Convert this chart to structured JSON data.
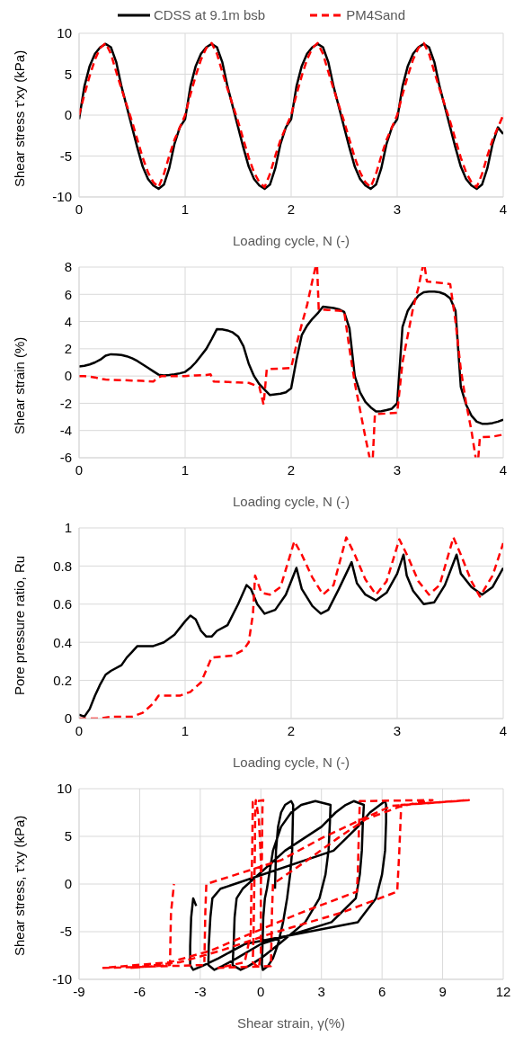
{
  "chart_data": [
    {
      "type": "line",
      "ylabel": "Shear stress τ'xy (kPa)",
      "xlabel": "Loading cycle, N (-)",
      "legend": "top",
      "grid": true,
      "xlim": [
        0,
        4
      ],
      "xticks": [
        0,
        1,
        2,
        3,
        4
      ],
      "ylim": [
        -10,
        10
      ],
      "yticks": [
        -10,
        -5,
        0,
        5,
        10
      ],
      "x": [
        0,
        0.05,
        0.1,
        0.15,
        0.2,
        0.25,
        0.3,
        0.35,
        0.4,
        0.45,
        0.5,
        0.55,
        0.6,
        0.65,
        0.7,
        0.75,
        0.8,
        0.85,
        0.9,
        0.95,
        1,
        1.05,
        1.1,
        1.15,
        1.2,
        1.25,
        1.3,
        1.35,
        1.4,
        1.45,
        1.5,
        1.55,
        1.6,
        1.65,
        1.7,
        1.75,
        1.8,
        1.85,
        1.9,
        1.95,
        2,
        2.05,
        2.1,
        2.15,
        2.2,
        2.25,
        2.3,
        2.35,
        2.4,
        2.45,
        2.5,
        2.55,
        2.6,
        2.65,
        2.7,
        2.75,
        2.8,
        2.85,
        2.9,
        2.95,
        3,
        3.05,
        3.1,
        3.15,
        3.2,
        3.25,
        3.3,
        3.35,
        3.4,
        3.45,
        3.5,
        3.55,
        3.6,
        3.65,
        3.7,
        3.75,
        3.8,
        3.85,
        3.9,
        3.95,
        4
      ],
      "series": [
        {
          "name": "CDSS at 9.1m bsb",
          "color": "#000000",
          "line_style": "solid",
          "values": [
            -0.5,
            3.5,
            6,
            7.5,
            8.3,
            8.7,
            8.3,
            6.5,
            3.5,
            1,
            -1.5,
            -4,
            -6.3,
            -7.8,
            -8.6,
            -9,
            -8.5,
            -6.5,
            -3.5,
            -1.5,
            -0.5,
            3.5,
            6,
            7.5,
            8.3,
            8.7,
            8.3,
            6.5,
            3.5,
            1,
            -1.5,
            -4,
            -6.3,
            -7.8,
            -8.6,
            -9,
            -8.5,
            -6.5,
            -3.5,
            -1.5,
            -0.5,
            3.5,
            6,
            7.5,
            8.3,
            8.7,
            8.3,
            6.5,
            3.5,
            1,
            -1.5,
            -4,
            -6.3,
            -7.8,
            -8.6,
            -9,
            -8.5,
            -6.5,
            -3.5,
            -1.5,
            -0.5,
            3.5,
            6,
            7.5,
            8.3,
            8.7,
            8.3,
            6.5,
            3.5,
            1,
            -1.5,
            -4,
            -6.3,
            -7.8,
            -8.6,
            -9,
            -8.5,
            -6.5,
            -3.5,
            -1.5,
            -2.3
          ]
        },
        {
          "name": "PM4Sand",
          "color": "#ff0000",
          "line_style": "dashed",
          "values": [
            0,
            2.5,
            4.8,
            6.8,
            8.2,
            8.8,
            7.5,
            5.3,
            3.2,
            1.2,
            -0.8,
            -3,
            -5.2,
            -7,
            -8.2,
            -8.8,
            -7.2,
            -5,
            -3,
            -1.5,
            0,
            2.5,
            4.8,
            6.8,
            8.2,
            8.8,
            7.5,
            5.3,
            3.2,
            1.2,
            -0.8,
            -3,
            -5.2,
            -7,
            -8.2,
            -8.8,
            -7.2,
            -5,
            -3,
            -1.5,
            0,
            2.5,
            4.8,
            6.8,
            8.2,
            8.8,
            7.5,
            5.3,
            3.2,
            1.2,
            -0.8,
            -3,
            -5.2,
            -7,
            -8.2,
            -8.8,
            -7.2,
            -5,
            -3,
            -1.5,
            0,
            2.5,
            4.8,
            6.8,
            8.2,
            8.8,
            7.5,
            5.3,
            3.2,
            1.2,
            -0.8,
            -3,
            -5.2,
            -7,
            -8.2,
            -8.8,
            -7.2,
            -5,
            -3,
            -1.5,
            0
          ]
        }
      ]
    },
    {
      "type": "line",
      "ylabel": "Shear strain (%)",
      "xlabel": "Loading cycle, N (-)",
      "grid": true,
      "xlim": [
        0,
        4
      ],
      "xticks": [
        0,
        1,
        2,
        3,
        4
      ],
      "ylim": [
        -6,
        8
      ],
      "yticks": [
        -6,
        -4,
        -2,
        0,
        2,
        4,
        6,
        8
      ],
      "series": [
        {
          "color": "#000000",
          "line_style": "solid",
          "x": [
            0,
            0.05,
            0.1,
            0.15,
            0.2,
            0.25,
            0.3,
            0.35,
            0.4,
            0.45,
            0.5,
            0.55,
            0.6,
            0.65,
            0.7,
            0.75,
            0.8,
            0.85,
            0.9,
            0.95,
            1,
            1.05,
            1.1,
            1.15,
            1.2,
            1.25,
            1.3,
            1.35,
            1.4,
            1.45,
            1.5,
            1.55,
            1.6,
            1.65,
            1.7,
            1.75,
            1.8,
            1.85,
            1.9,
            1.95,
            2,
            2.05,
            2.1,
            2.15,
            2.2,
            2.25,
            2.3,
            2.35,
            2.4,
            2.45,
            2.5,
            2.55,
            2.6,
            2.65,
            2.7,
            2.75,
            2.8,
            2.85,
            2.9,
            2.95,
            3,
            3.05,
            3.1,
            3.15,
            3.2,
            3.25,
            3.3,
            3.35,
            3.4,
            3.45,
            3.5,
            3.55,
            3.6,
            3.65,
            3.7,
            3.75,
            3.8,
            3.85,
            3.9,
            3.95,
            4
          ],
          "values": [
            0.7,
            0.75,
            0.85,
            1,
            1.2,
            1.5,
            1.6,
            1.58,
            1.55,
            1.45,
            1.3,
            1.1,
            0.85,
            0.6,
            0.35,
            0.1,
            0.05,
            0.08,
            0.12,
            0.2,
            0.3,
            0.6,
            1,
            1.5,
            2,
            2.7,
            3.45,
            3.42,
            3.35,
            3.2,
            2.9,
            2.2,
            0.9,
            0,
            -0.6,
            -1,
            -1.4,
            -1.35,
            -1.3,
            -1.2,
            -0.9,
            1.2,
            3,
            3.7,
            4.2,
            4.6,
            5.1,
            5.05,
            5,
            4.9,
            4.7,
            3.5,
            0,
            -1.2,
            -1.9,
            -2.3,
            -2.6,
            -2.58,
            -2.5,
            -2.4,
            -2,
            3.6,
            4.8,
            5.4,
            5.9,
            6.15,
            6.2,
            6.2,
            6.15,
            6,
            5.7,
            4.8,
            -0.8,
            -2.1,
            -2.9,
            -3.35,
            -3.5,
            -3.5,
            -3.45,
            -3.35,
            -3.2
          ]
        },
        {
          "color": "#ff0000",
          "line_style": "dashed",
          "x": [
            0,
            0.05,
            0.1,
            0.15,
            0.2,
            0.25,
            0.3,
            0.4,
            0.5,
            0.6,
            0.7,
            0.75,
            0.78,
            0.9,
            1,
            1.1,
            1.2,
            1.24,
            1.27,
            1.4,
            1.5,
            1.6,
            1.7,
            1.74,
            1.77,
            1.9,
            2,
            2.05,
            2.1,
            2.15,
            2.2,
            2.23,
            2.235,
            2.245,
            2.26,
            2.35,
            2.45,
            2.5,
            2.55,
            2.6,
            2.65,
            2.7,
            2.74,
            2.745,
            2.77,
            2.79,
            2.9,
            3,
            3.05,
            3.1,
            3.15,
            3.2,
            3.24,
            3.245,
            3.26,
            3.28,
            3.4,
            3.5,
            3.55,
            3.6,
            3.65,
            3.7,
            3.74,
            3.745,
            3.765,
            3.78,
            3.9,
            4
          ],
          "values": [
            0,
            0,
            -0.05,
            -0.1,
            -0.2,
            -0.25,
            -0.28,
            -0.3,
            -0.33,
            -0.36,
            -0.4,
            -0.1,
            0,
            0,
            0,
            0.05,
            0.08,
            0.12,
            -0.4,
            -0.43,
            -0.47,
            -0.5,
            -0.8,
            -2.1,
            0.5,
            0.55,
            0.6,
            2.3,
            3.8,
            5.2,
            7,
            8,
            null,
            8,
            4.9,
            4.85,
            4.8,
            4.75,
            2,
            -0.5,
            -2.5,
            -4.5,
            -6,
            null,
            -6,
            -2.8,
            -2.75,
            -2.7,
            1,
            3,
            5,
            6.5,
            8,
            null,
            8,
            6.95,
            6.85,
            6.75,
            4,
            0.5,
            -2,
            -4,
            -6,
            null,
            -6,
            -4.5,
            -4.45,
            -4.3
          ]
        }
      ]
    },
    {
      "type": "line",
      "ylabel": "Pore pressure ratio, Ru",
      "xlabel": "Loading cycle, N (-)",
      "grid": true,
      "xlim": [
        0,
        4
      ],
      "xticks": [
        0,
        1,
        2,
        3,
        4
      ],
      "ylim": [
        0,
        1
      ],
      "yticks": [
        0,
        0.2,
        0.4,
        0.6,
        0.8,
        1
      ],
      "series": [
        {
          "color": "#000000",
          "line_style": "solid",
          "x": [
            0,
            0.05,
            0.1,
            0.15,
            0.2,
            0.25,
            0.3,
            0.4,
            0.45,
            0.5,
            0.55,
            0.6,
            0.7,
            0.8,
            0.9,
            1,
            1.05,
            1.1,
            1.15,
            1.2,
            1.25,
            1.3,
            1.4,
            1.5,
            1.58,
            1.62,
            1.68,
            1.75,
            1.85,
            1.95,
            2.05,
            2.1,
            2.2,
            2.28,
            2.35,
            2.45,
            2.57,
            2.62,
            2.7,
            2.8,
            2.9,
            3,
            3.06,
            3.09,
            3.15,
            3.25,
            3.35,
            3.45,
            3.56,
            3.6,
            3.7,
            3.8,
            3.9,
            4
          ],
          "values": [
            0.02,
            0.01,
            0.05,
            0.12,
            0.18,
            0.23,
            0.25,
            0.28,
            0.32,
            0.35,
            0.38,
            0.38,
            0.38,
            0.4,
            0.44,
            0.51,
            0.54,
            0.52,
            0.46,
            0.43,
            0.43,
            0.46,
            0.49,
            0.6,
            0.7,
            0.68,
            0.6,
            0.55,
            0.57,
            0.65,
            0.79,
            0.68,
            0.59,
            0.55,
            0.57,
            0.68,
            0.82,
            0.71,
            0.65,
            0.62,
            0.66,
            0.76,
            0.86,
            0.75,
            0.67,
            0.6,
            0.61,
            0.7,
            0.86,
            0.76,
            0.69,
            0.65,
            0.69,
            0.79
          ]
        },
        {
          "color": "#ff0000",
          "line_style": "dashed",
          "x": [
            0,
            0.2,
            0.3,
            0.5,
            0.6,
            0.7,
            0.75,
            0.95,
            1.05,
            1.15,
            1.25,
            1.45,
            1.55,
            1.6,
            1.64,
            1.66,
            1.72,
            1.8,
            1.9,
            2.03,
            2.1,
            2.2,
            2.3,
            2.4,
            2.52,
            2.6,
            2.7,
            2.8,
            2.9,
            3.02,
            3.1,
            3.2,
            3.3,
            3.4,
            3.53,
            3.6,
            3.7,
            3.78,
            3.9,
            4
          ],
          "values": [
            0,
            0,
            0.01,
            0.01,
            0.03,
            0.08,
            0.12,
            0.12,
            0.14,
            0.19,
            0.32,
            0.33,
            0.36,
            0.4,
            0.55,
            0.75,
            0.66,
            0.65,
            0.69,
            0.93,
            0.86,
            0.74,
            0.65,
            0.7,
            0.95,
            0.86,
            0.73,
            0.65,
            0.72,
            0.94,
            0.85,
            0.72,
            0.65,
            0.7,
            0.95,
            0.86,
            0.72,
            0.64,
            0.75,
            0.92
          ]
        }
      ]
    },
    {
      "type": "line",
      "ylabel": "Shear stress, τ'xy (kPa)",
      "xlabel": "Shear strain, γ(%)",
      "grid": true,
      "xlim": [
        -9,
        12
      ],
      "xticks": [
        -9,
        -6,
        -3,
        0,
        3,
        6,
        9,
        12
      ],
      "ylim": [
        -10,
        10
      ],
      "yticks": [
        -10,
        -5,
        0,
        5,
        10
      ],
      "series": [
        {
          "color": "#000000",
          "line_style": "solid",
          "x": [
            0.7,
            0.75,
            0.85,
            1,
            1.2,
            1.5,
            1.6,
            1.58,
            1.55,
            1.45,
            1.3,
            1.1,
            0.85,
            0.6,
            0.35,
            0.1,
            0.05,
            0.08,
            0.12,
            0.2,
            0.3,
            0.6,
            1,
            1.5,
            2,
            2.7,
            3.45,
            3.42,
            3.35,
            3.2,
            2.9,
            2.2,
            0.9,
            0,
            -0.6,
            -1,
            -1.4,
            -1.35,
            -1.3,
            -1.2,
            -0.9,
            1.2,
            3,
            3.7,
            4.2,
            4.6,
            5.1,
            5.05,
            5,
            4.9,
            4.7,
            3.5,
            0,
            -1.2,
            -1.9,
            -2.3,
            -2.6,
            -2.58,
            -2.5,
            -2.4,
            -2,
            3.6,
            4.8,
            5.4,
            5.9,
            6.15,
            6.2,
            6.2,
            6.15,
            6,
            5.7,
            4.8,
            -0.8,
            -2.1,
            -2.9,
            -3.35,
            -3.5,
            -3.5,
            -3.45,
            -3.35,
            -3.2
          ],
          "values": [
            -0.5,
            3.5,
            6,
            7.5,
            8.3,
            8.7,
            8.3,
            6.5,
            3.5,
            1,
            -1.5,
            -4,
            -6.3,
            -7.8,
            -8.6,
            -9,
            -8.5,
            -6.5,
            -3.5,
            -1.5,
            -0.5,
            3.5,
            6,
            7.5,
            8.3,
            8.7,
            8.3,
            6.5,
            3.5,
            1,
            -1.5,
            -4,
            -6.3,
            -7.8,
            -8.6,
            -9,
            -8.5,
            -6.5,
            -3.5,
            -1.5,
            -0.5,
            3.5,
            6,
            7.5,
            8.3,
            8.7,
            8.3,
            6.5,
            3.5,
            1,
            -1.5,
            -4,
            -6.3,
            -7.8,
            -8.6,
            -9,
            -8.5,
            -6.5,
            -3.5,
            -1.5,
            -0.5,
            3.5,
            6,
            7.5,
            8.3,
            8.7,
            8.3,
            6.5,
            3.5,
            1,
            -1.5,
            -4,
            -6.3,
            -7.8,
            -8.6,
            -9,
            -8.5,
            -6.5,
            -3.5,
            -1.5,
            -2.3
          ]
        },
        {
          "color": "#ff0000",
          "line_style": "dashed",
          "x": [
            0,
            0,
            -0.05,
            -0.1,
            -0.2,
            -0.25,
            -0.28,
            -0.3,
            -0.33,
            -0.36,
            -0.4,
            -0.1,
            0,
            0,
            0,
            0.05,
            0.08,
            0.12,
            -0.4,
            -0.43,
            -0.47,
            -0.5,
            -0.8,
            -2.1,
            0.5,
            0.55,
            0.6,
            2.3,
            3.8,
            5.2,
            7,
            8.5,
            4.9,
            4.85,
            4.8,
            4.75,
            2,
            -0.5,
            -2.5,
            -4.5,
            -7.8,
            -2.8,
            -2.75,
            -2.7,
            1,
            3,
            5,
            6.5,
            10.3,
            6.95,
            6.85,
            6.75,
            4,
            0.5,
            -2,
            -4,
            -6.5,
            -4.5,
            -4.45,
            -4.3
          ],
          "values": [
            0,
            2.5,
            4.8,
            6.8,
            8.2,
            8.8,
            7.5,
            3,
            -0.8,
            -5.2,
            -8.2,
            -8.8,
            -7.2,
            -3,
            0,
            2.5,
            8.2,
            8.8,
            8.6,
            3.2,
            -0.8,
            -5.2,
            -8.2,
            -8.8,
            -8.6,
            -3,
            0,
            2.5,
            4.8,
            6.8,
            8.2,
            8.8,
            8.7,
            5.3,
            1,
            -0.8,
            -3,
            -5.2,
            -7,
            -8.2,
            -8.8,
            -8.5,
            -3,
            0,
            2.5,
            4.8,
            6.8,
            8.2,
            8.8,
            8.3,
            3.2,
            -0.8,
            -3,
            -5.2,
            -7,
            -8.2,
            -8.8,
            -8.5,
            -3,
            0
          ]
        }
      ]
    }
  ]
}
